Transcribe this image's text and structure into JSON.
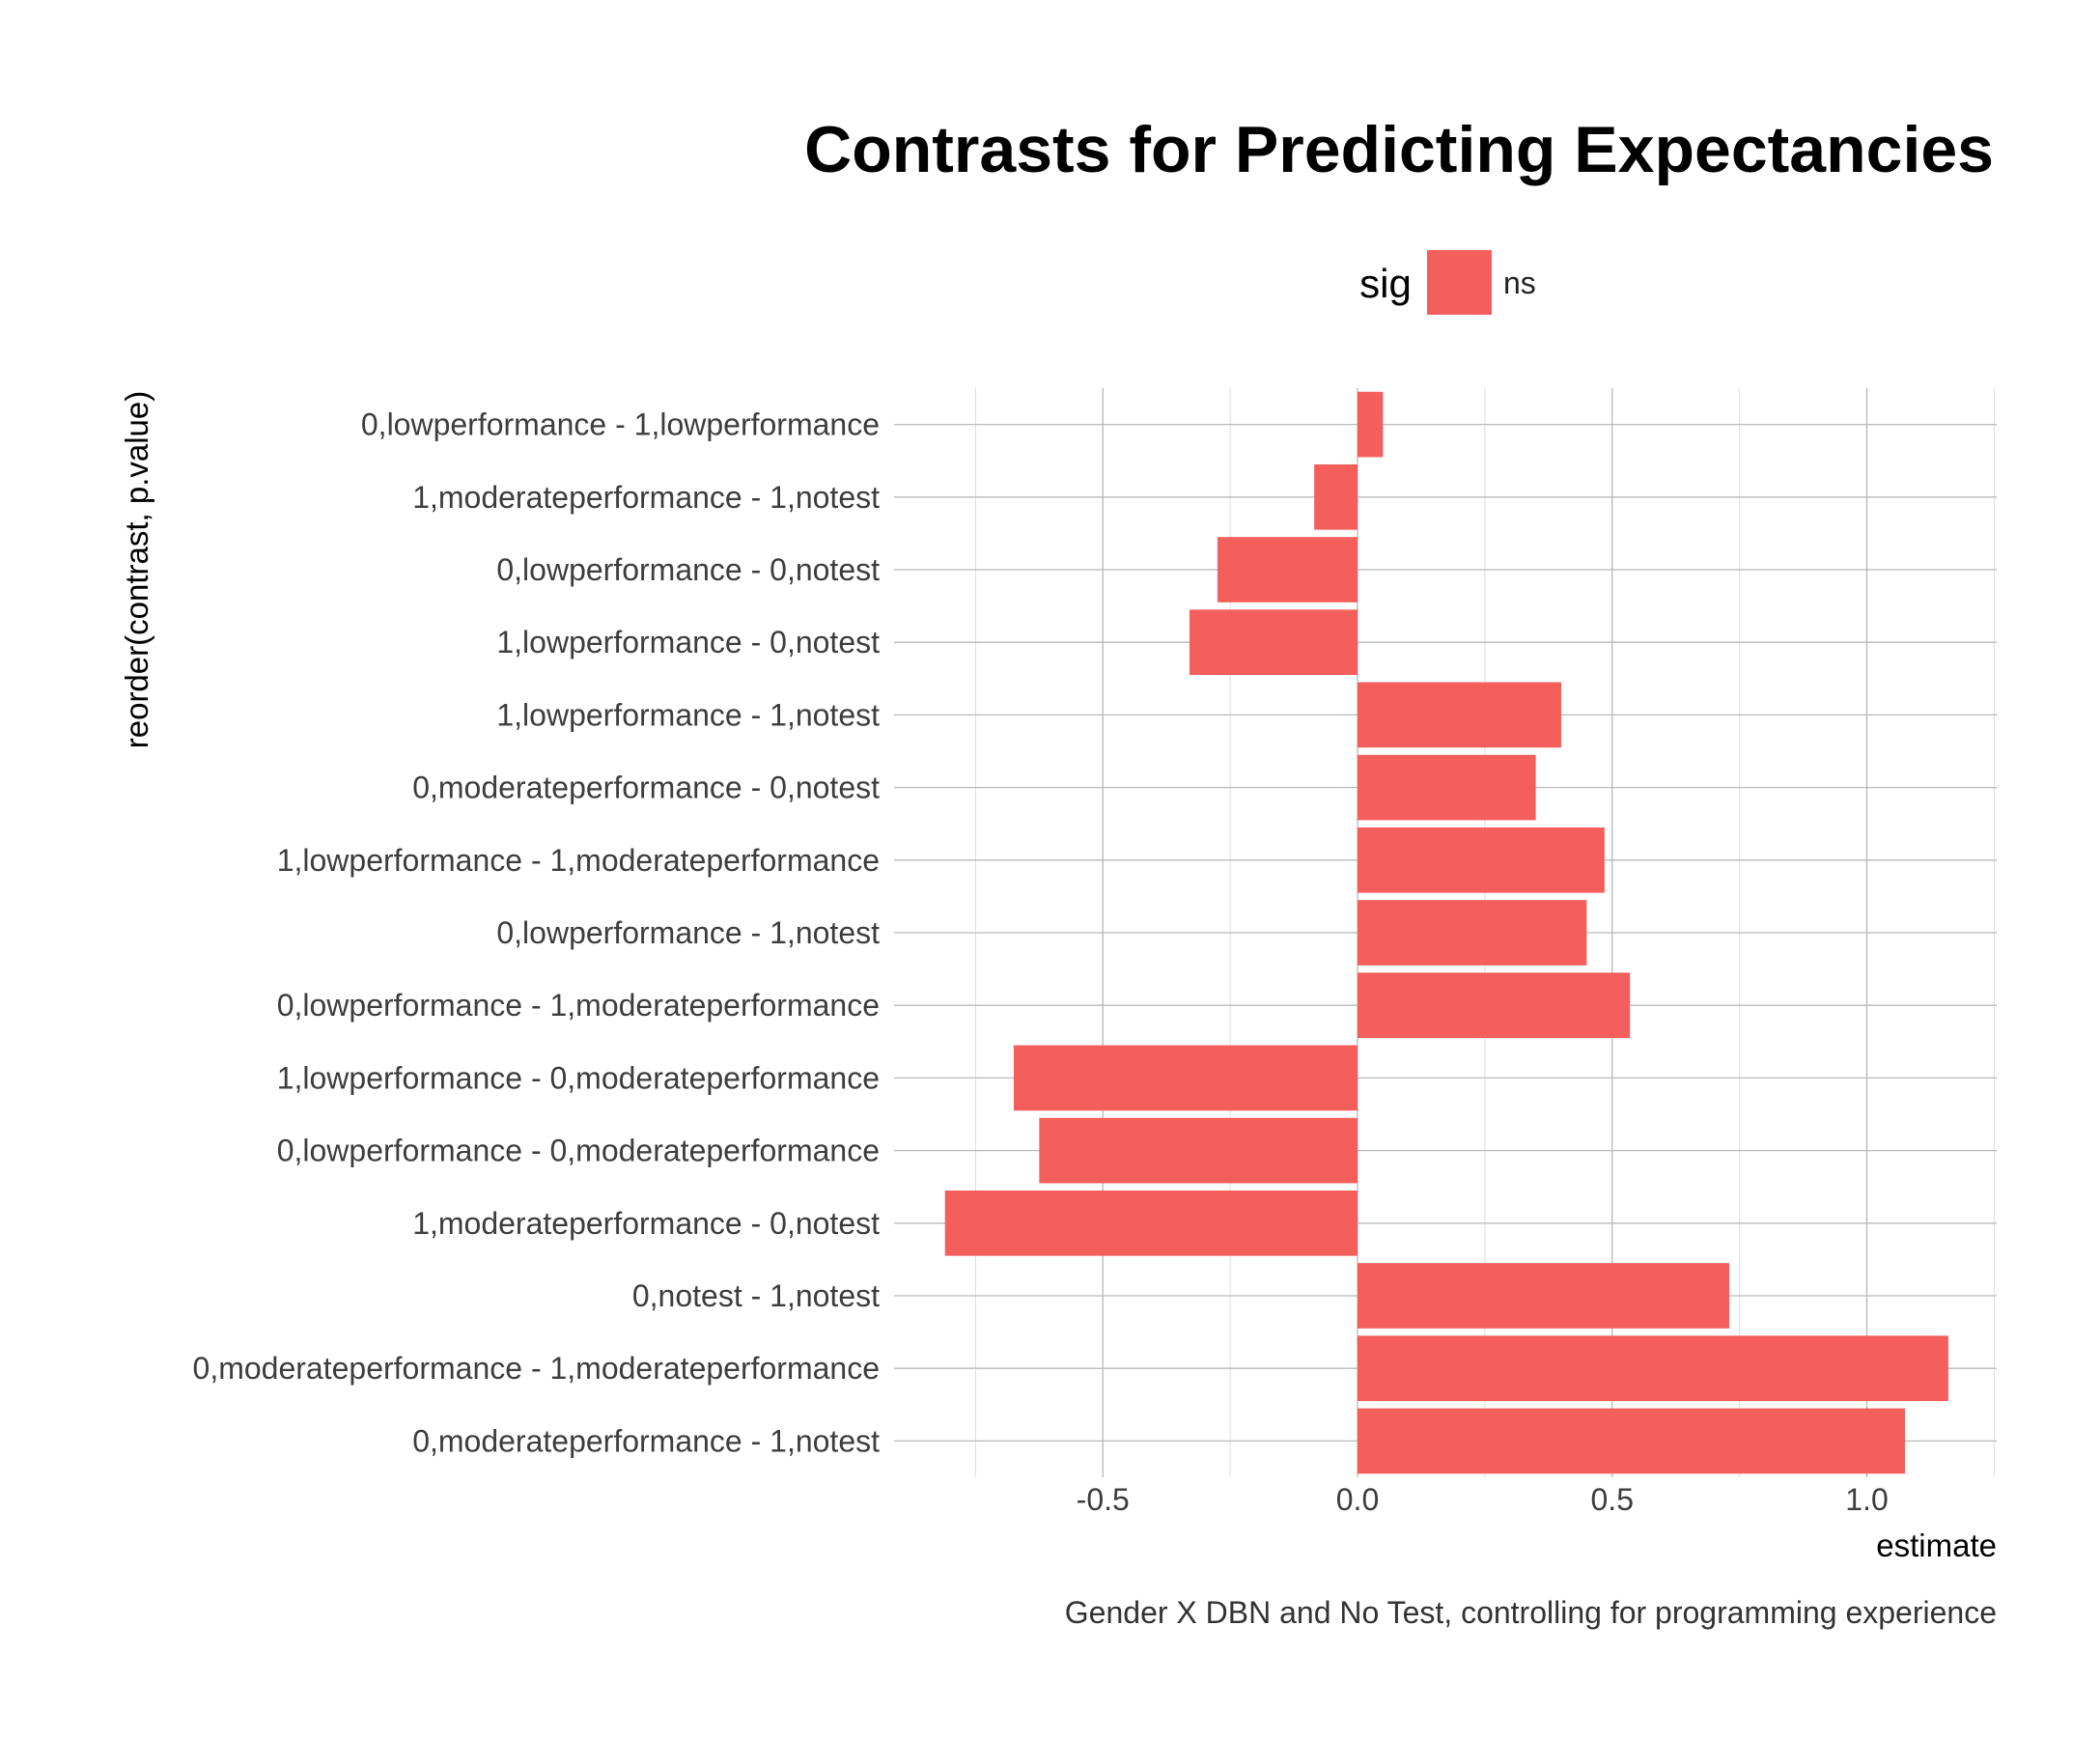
{
  "chart_data": {
    "type": "bar",
    "orientation": "horizontal",
    "title": "Contrasts for Predicting Expectancies",
    "caption": "Gender X DBN and No Test, controlling for programming experience",
    "xlabel": "estimate",
    "ylabel": "reorder(contrast, p.value)",
    "xlim": [
      -0.9,
      1.25
    ],
    "xticks": [
      -0.5,
      0.0,
      0.5,
      1.0
    ],
    "xtick_labels": [
      "-0.5",
      "0.0",
      "0.5",
      "1.0"
    ],
    "grid": true,
    "legend": {
      "title": "sig",
      "position": "top",
      "entries": [
        {
          "label": "ns",
          "color": "#F45F5C"
        }
      ]
    },
    "bar_color": "#F45F5C",
    "categories": [
      "0,lowperformance - 1,lowperformance",
      "1,moderateperformance - 1,notest",
      "0,lowperformance - 0,notest",
      "1,lowperformance - 0,notest",
      "1,lowperformance - 1,notest",
      "0,moderateperformance - 0,notest",
      "1,lowperformance - 1,moderateperformance",
      "0,lowperformance - 1,notest",
      "0,lowperformance - 1,moderateperformance",
      "1,lowperformance - 0,moderateperformance",
      "0,lowperformance - 0,moderateperformance",
      "1,moderateperformance - 0,notest",
      "0,notest - 1,notest",
      "0,moderateperformance - 1,moderateperformance",
      "0,moderateperformance - 1,notest"
    ],
    "series": [
      {
        "values": [
          0.05,
          -0.085,
          -0.275,
          -0.33,
          0.4,
          0.35,
          0.485,
          0.45,
          0.535,
          -0.675,
          -0.625,
          -0.81,
          0.73,
          1.16,
          1.075
        ]
      }
    ]
  }
}
